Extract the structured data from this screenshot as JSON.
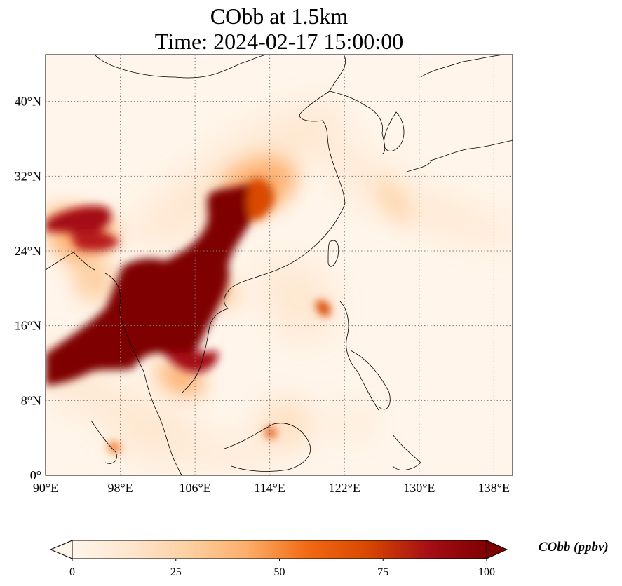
{
  "title": {
    "line1": "CObb at 1.5km",
    "line2": "Time: 2024-02-17 15:00:00"
  },
  "map": {
    "lon_range": [
      90,
      140
    ],
    "lat_range": [
      0,
      45
    ],
    "lon_ticks": [
      {
        "value": 90,
        "label": "90°E"
      },
      {
        "value": 98,
        "label": "98°E"
      },
      {
        "value": 106,
        "label": "106°E"
      },
      {
        "value": 114,
        "label": "114°E"
      },
      {
        "value": 122,
        "label": "122°E"
      },
      {
        "value": 130,
        "label": "130°E"
      },
      {
        "value": 138,
        "label": "138°E"
      }
    ],
    "lat_ticks": [
      {
        "value": 0,
        "label": "0°"
      },
      {
        "value": 8,
        "label": "8°N"
      },
      {
        "value": 16,
        "label": "16°N"
      },
      {
        "value": 24,
        "label": "24°N"
      },
      {
        "value": 32,
        "label": "32°N"
      },
      {
        "value": 40,
        "label": "40°N"
      }
    ],
    "gridlines": true
  },
  "colorbar": {
    "title": "CObb (ppbv)",
    "min": 0,
    "max": 100,
    "ticks": [
      {
        "value": 0,
        "label": "0"
      },
      {
        "value": 25,
        "label": "25"
      },
      {
        "value": 50,
        "label": "50"
      },
      {
        "value": 75,
        "label": "75"
      },
      {
        "value": 100,
        "label": "100"
      }
    ],
    "extend": "both",
    "colormap": [
      "#fff5eb",
      "#fee6ce",
      "#fdd0a2",
      "#fdae6b",
      "#f16913",
      "#d94801",
      "#a50f15",
      "#7f0000"
    ]
  }
}
